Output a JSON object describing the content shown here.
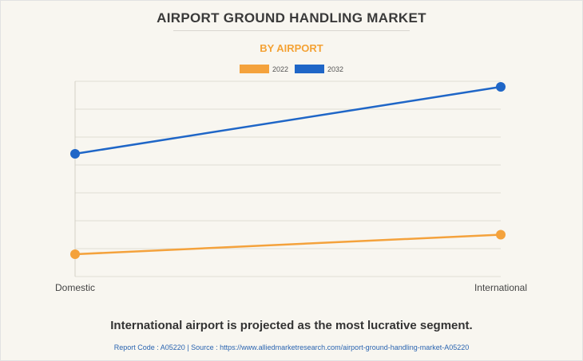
{
  "chart_data": {
    "type": "line",
    "title": "AIRPORT GROUND HANDLING MARKET",
    "subtitle": "BY AIRPORT",
    "categories": [
      "Domestic",
      "International"
    ],
    "series": [
      {
        "name": "2022",
        "color": "#f4a23c",
        "values": [
          8,
          15
        ]
      },
      {
        "name": "2032",
        "color": "#1f66c7",
        "values": [
          44,
          68
        ]
      }
    ],
    "ylim": [
      0,
      70
    ],
    "grid": true,
    "legend_position": "top"
  },
  "footer": {
    "headline": "International airport is projected as the most lucrative segment.",
    "report_line": "Report Code : A05220  |  Source : https://www.alliedmarketresearch.com/airport-ground-handling-market-A05220"
  }
}
